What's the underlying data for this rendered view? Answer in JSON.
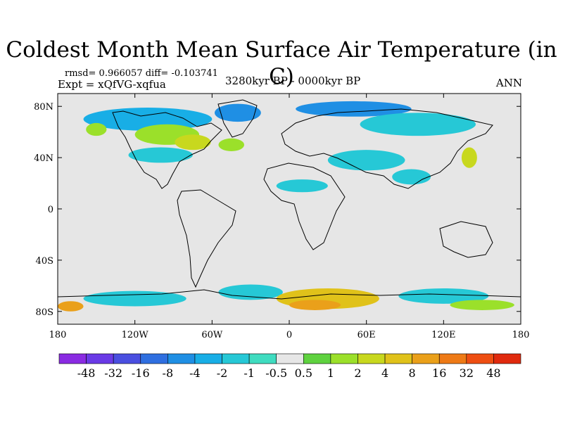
{
  "title": "Coldest Month Mean Surface Air Temperature (in C)",
  "stats": "rmsd= 0.966057 diff= -0.103741",
  "experiment": "Expt = xQfVG-xqfua",
  "period": "3280kyr BP - 0000kyr BP",
  "season": "ANN",
  "map": {
    "type": "filled-contour world map",
    "projection": "cylindrical equidistant",
    "lon_range": [
      -180,
      180
    ],
    "lat_range": [
      -90,
      90
    ],
    "background_color": "#e6e6e6",
    "x_ticks": [
      {
        "lon": -180,
        "label": "180"
      },
      {
        "lon": -120,
        "label": "120W"
      },
      {
        "lon": -60,
        "label": "60W"
      },
      {
        "lon": 0,
        "label": "0"
      },
      {
        "lon": 60,
        "label": "60E"
      },
      {
        "lon": 120,
        "label": "120E"
      },
      {
        "lon": 180,
        "label": "180"
      }
    ],
    "y_ticks": [
      {
        "lat": 80,
        "label": "80N"
      },
      {
        "lat": 40,
        "label": "40N"
      },
      {
        "lat": 0,
        "label": "0"
      },
      {
        "lat": -40,
        "label": "40S"
      },
      {
        "lat": -80,
        "label": "80S"
      }
    ]
  },
  "colorbar": {
    "levels": [
      "-48",
      "-32",
      "-16",
      "-8",
      "-4",
      "-2",
      "-1",
      "-0.5",
      "0.5",
      "1",
      "2",
      "4",
      "8",
      "16",
      "32",
      "48"
    ],
    "colors": [
      "#8a2be2",
      "#6a3ae6",
      "#4a4fe0",
      "#2f6fe0",
      "#1f8fe4",
      "#18aee6",
      "#26c8d6",
      "#3fdcc0",
      "#e6e6e6",
      "#5fd23f",
      "#9be02a",
      "#c8d81e",
      "#e0c21a",
      "#eaa01a",
      "#ee7a16",
      "#ee4e12",
      "#e02a0e"
    ]
  },
  "regions": [
    {
      "name": "arctic-cooling",
      "lon": -110,
      "lat": 70,
      "rx": 50,
      "ry": 9,
      "color": "#18aee6"
    },
    {
      "name": "greenland-cooling",
      "lon": -40,
      "lat": 75,
      "rx": 18,
      "ry": 7,
      "color": "#1f8fe4"
    },
    {
      "name": "barents-cooling",
      "lon": 50,
      "lat": 78,
      "rx": 45,
      "ry": 6,
      "color": "#1f8fe4"
    },
    {
      "name": "siberia-cooling",
      "lon": 100,
      "lat": 66,
      "rx": 45,
      "ry": 9,
      "color": "#26c8d6"
    },
    {
      "name": "north-america-warming",
      "lon": -95,
      "lat": 58,
      "rx": 25,
      "ry": 8,
      "color": "#9be02a"
    },
    {
      "name": "canada-warming",
      "lon": -75,
      "lat": 52,
      "rx": 14,
      "ry": 6,
      "color": "#c8d81e"
    },
    {
      "name": "alaska-warming",
      "lon": -150,
      "lat": 62,
      "rx": 8,
      "ry": 5,
      "color": "#9be02a"
    },
    {
      "name": "atlantic-warming",
      "lon": -45,
      "lat": 50,
      "rx": 10,
      "ry": 5,
      "color": "#9be02a"
    },
    {
      "name": "nearctic-cooling",
      "lon": -100,
      "lat": 42,
      "rx": 25,
      "ry": 6,
      "color": "#26c8d6"
    },
    {
      "name": "eurasia-cooling",
      "lon": 60,
      "lat": 38,
      "rx": 30,
      "ry": 8,
      "color": "#26c8d6"
    },
    {
      "name": "sahara-cooling",
      "lon": 10,
      "lat": 18,
      "rx": 20,
      "ry": 5,
      "color": "#26c8d6"
    },
    {
      "name": "india-cooling",
      "lon": 95,
      "lat": 25,
      "rx": 15,
      "ry": 6,
      "color": "#26c8d6"
    },
    {
      "name": "japan-warming",
      "lon": 140,
      "lat": 40,
      "rx": 6,
      "ry": 8,
      "color": "#c8d81e"
    },
    {
      "name": "southern-ocean-cooling",
      "lon": -120,
      "lat": -70,
      "rx": 40,
      "ry": 6,
      "color": "#26c8d6"
    },
    {
      "name": "weddell-cooling",
      "lon": -30,
      "lat": -65,
      "rx": 25,
      "ry": 6,
      "color": "#26c8d6"
    },
    {
      "name": "antarctic-warming",
      "lon": 30,
      "lat": -70,
      "rx": 40,
      "ry": 8,
      "color": "#e0c21a"
    },
    {
      "name": "antarctic-warming-core",
      "lon": 20,
      "lat": -75,
      "rx": 20,
      "ry": 4,
      "color": "#eaa01a"
    },
    {
      "name": "east-antarctic-cooling",
      "lon": 120,
      "lat": -68,
      "rx": 35,
      "ry": 6,
      "color": "#26c8d6"
    },
    {
      "name": "ross-warming",
      "lon": -170,
      "lat": -76,
      "rx": 10,
      "ry": 4,
      "color": "#eaa01a"
    },
    {
      "name": "antarctic-coast-warming",
      "lon": 150,
      "lat": -75,
      "rx": 25,
      "ry": 4,
      "color": "#9be02a"
    }
  ]
}
